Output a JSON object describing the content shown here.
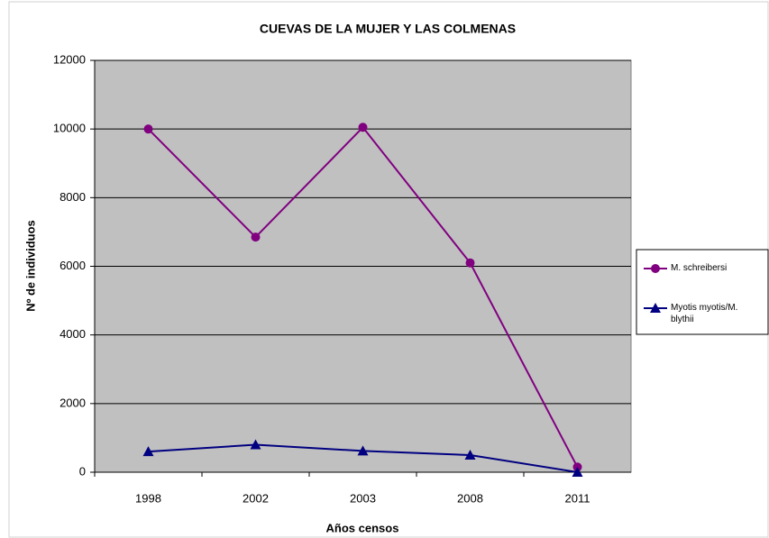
{
  "chart_data": {
    "type": "line",
    "title": "CUEVAS DE LA MUJER Y LAS COLMENAS",
    "x_label": "Años censos",
    "y_label": "Nº de individuos",
    "categories": [
      "1998",
      "2002",
      "2003",
      "2008",
      "2011"
    ],
    "series": [
      {
        "name": "M. schreibersi",
        "color": "#800080",
        "marker": "circle",
        "values": [
          10000,
          6850,
          10050,
          6100,
          150
        ]
      },
      {
        "name": "Myotis myotis/M. blythii",
        "color": "#000080",
        "marker": "triangle",
        "values": [
          600,
          800,
          620,
          500,
          0
        ]
      }
    ],
    "ylim": [
      0,
      12000
    ],
    "yticks": [
      0,
      2000,
      4000,
      6000,
      8000,
      10000,
      12000
    ],
    "grid": true,
    "legend": "right"
  }
}
